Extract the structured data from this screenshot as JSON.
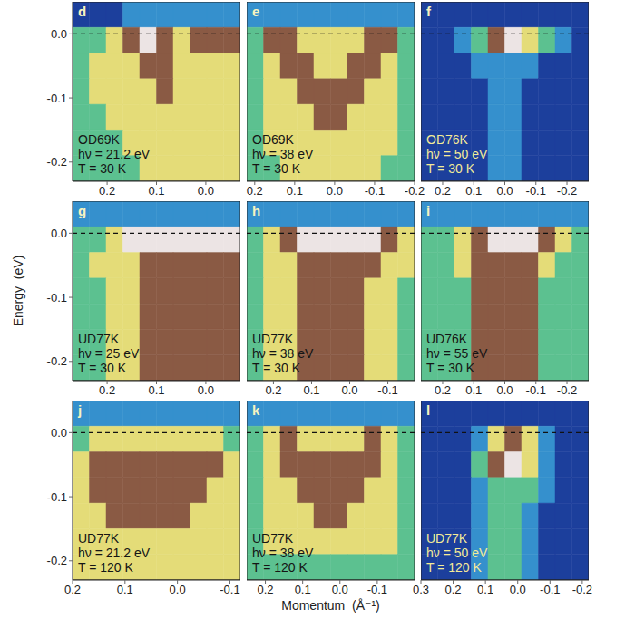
{
  "xlabel": "Momentum  (Å⁻¹)",
  "ylabel": "Energy  (eV)",
  "chart_data": [
    {
      "type": "heatmap",
      "title": "d",
      "annotations": [
        "OD69K",
        "hν = 21.2 eV",
        "T = 30 K"
      ],
      "xlim": [
        0.27,
        -0.07
      ],
      "xticks": [
        0.2,
        0.1,
        {
          "value": 0,
          "label": "0.0"
        }
      ],
      "ylim": [
        -0.23,
        0.05
      ],
      "yticks": [
        {
          "value": 0,
          "label": "0.0"
        },
        -0.1,
        -0.2
      ],
      "fermi_level": 0,
      "cells": [
        [
          0,
          0,
          0,
          1,
          1,
          1,
          1,
          1,
          1,
          1
        ],
        [
          2,
          2,
          3,
          4,
          5,
          4,
          3,
          4,
          4,
          4
        ],
        [
          2,
          3,
          3,
          3,
          4,
          4,
          3,
          3,
          3,
          3
        ],
        [
          2,
          3,
          3,
          3,
          3,
          4,
          3,
          3,
          3,
          3
        ],
        [
          2,
          2,
          3,
          3,
          3,
          3,
          3,
          3,
          3,
          3
        ],
        [
          2,
          2,
          2,
          3,
          3,
          3,
          3,
          3,
          3,
          3
        ],
        [
          2,
          2,
          2,
          2,
          3,
          3,
          3,
          3,
          3,
          3
        ]
      ]
    },
    {
      "type": "heatmap",
      "title": "e",
      "annotations": [
        "OD69K",
        "hν = 38 eV",
        "T = 30 K"
      ],
      "xlim": [
        0.22,
        -0.2
      ],
      "xticks": [
        0.2,
        0.1,
        {
          "value": 0,
          "label": "0.0"
        },
        -0.1,
        -0.2
      ],
      "ylim": [
        -0.23,
        0.05
      ],
      "yticks": [
        {
          "value": 0,
          "label": "0.0"
        },
        -0.1,
        -0.2
      ],
      "fermi_level": 0,
      "tick_labels": "x",
      "cells": [
        [
          1,
          1,
          1,
          1,
          1,
          1,
          1,
          1,
          1,
          1
        ],
        [
          2,
          4,
          4,
          3,
          3,
          3,
          3,
          4,
          4,
          2
        ],
        [
          2,
          3,
          4,
          4,
          3,
          3,
          4,
          4,
          3,
          2
        ],
        [
          2,
          3,
          3,
          4,
          4,
          4,
          4,
          3,
          3,
          2
        ],
        [
          2,
          3,
          3,
          3,
          4,
          4,
          3,
          3,
          3,
          2
        ],
        [
          2,
          3,
          3,
          3,
          3,
          3,
          3,
          3,
          3,
          2
        ],
        [
          2,
          2,
          3,
          3,
          3,
          3,
          3,
          3,
          2,
          2
        ]
      ]
    },
    {
      "type": "heatmap",
      "title": "f",
      "annotations": [
        "OD76K",
        "hν = 50 eV",
        "T = 30 K"
      ],
      "xlim": [
        0.27,
        -0.27
      ],
      "xticks": [
        0.2,
        0.1,
        {
          "value": 0,
          "label": "0.0"
        },
        -0.1,
        -0.2
      ],
      "ylim": [
        -0.23,
        0.05
      ],
      "yticks": [
        {
          "value": 0,
          "label": "0.0"
        },
        -0.1,
        -0.2
      ],
      "fermi_level": 0,
      "tick_labels": "x",
      "cells": [
        [
          0,
          0,
          0,
          0,
          0,
          0,
          0,
          0,
          0,
          0
        ],
        [
          0,
          0,
          1,
          2,
          4,
          5,
          3,
          2,
          1,
          0
        ],
        [
          0,
          0,
          0,
          1,
          1,
          1,
          1,
          0,
          0,
          0
        ],
        [
          0,
          0,
          0,
          0,
          1,
          1,
          0,
          0,
          0,
          0
        ],
        [
          0,
          0,
          0,
          0,
          1,
          1,
          0,
          0,
          0,
          0
        ],
        [
          0,
          0,
          0,
          0,
          1,
          1,
          0,
          0,
          0,
          0
        ],
        [
          0,
          0,
          0,
          0,
          1,
          1,
          0,
          0,
          0,
          0
        ]
      ]
    },
    {
      "type": "heatmap",
      "title": "g",
      "annotations": [
        "UD77K",
        "hν = 25 eV",
        "T = 30 K"
      ],
      "xlim": [
        0.27,
        -0.07
      ],
      "xticks": [
        0.2,
        0.1,
        {
          "value": 0,
          "label": "0.0"
        }
      ],
      "ylim": [
        -0.23,
        0.05
      ],
      "yticks": [
        {
          "value": 0,
          "label": "0.0"
        },
        -0.1,
        -0.2
      ],
      "fermi_level": 0,
      "cells": [
        [
          1,
          1,
          1,
          1,
          1,
          1,
          1,
          1,
          1,
          1
        ],
        [
          2,
          2,
          3,
          5,
          5,
          5,
          5,
          5,
          5,
          5
        ],
        [
          2,
          3,
          3,
          3,
          4,
          4,
          4,
          4,
          4,
          4
        ],
        [
          2,
          2,
          3,
          3,
          4,
          4,
          4,
          4,
          4,
          4
        ],
        [
          2,
          2,
          3,
          3,
          4,
          4,
          4,
          4,
          4,
          4
        ],
        [
          2,
          2,
          3,
          3,
          4,
          4,
          4,
          4,
          4,
          4
        ],
        [
          2,
          2,
          3,
          3,
          4,
          4,
          4,
          4,
          4,
          4
        ]
      ]
    },
    {
      "type": "heatmap",
      "title": "h",
      "annotations": [
        "UD77K",
        "hν = 38 eV",
        "T = 30 K"
      ],
      "xlim": [
        0.27,
        -0.17
      ],
      "xticks": [
        0.2,
        0.1,
        {
          "value": 0,
          "label": "0.0"
        },
        -0.1
      ],
      "ylim": [
        -0.23,
        0.05
      ],
      "yticks": [
        {
          "value": 0,
          "label": "0.0"
        },
        -0.1,
        -0.2
      ],
      "fermi_level": 0,
      "tick_labels": "x",
      "cells": [
        [
          1,
          1,
          1,
          1,
          1,
          1,
          1,
          1,
          1,
          1
        ],
        [
          2,
          3,
          4,
          5,
          5,
          5,
          5,
          5,
          4,
          3
        ],
        [
          2,
          3,
          3,
          4,
          4,
          4,
          4,
          4,
          3,
          3
        ],
        [
          2,
          3,
          3,
          4,
          4,
          4,
          4,
          3,
          3,
          2
        ],
        [
          2,
          3,
          3,
          4,
          4,
          4,
          4,
          3,
          3,
          2
        ],
        [
          2,
          3,
          3,
          4,
          4,
          4,
          4,
          3,
          3,
          2
        ],
        [
          2,
          3,
          3,
          4,
          4,
          4,
          4,
          3,
          3,
          2
        ]
      ]
    },
    {
      "type": "heatmap",
      "title": "i",
      "annotations": [
        "UD76K",
        "hν = 55 eV",
        "T = 30 K"
      ],
      "xlim": [
        0.27,
        -0.27
      ],
      "xticks": [
        0.2,
        0.1,
        {
          "value": 0,
          "label": "0.0"
        },
        -0.1,
        -0.2
      ],
      "ylim": [
        -0.23,
        0.05
      ],
      "yticks": [
        {
          "value": 0,
          "label": "0.0"
        },
        -0.1,
        -0.2
      ],
      "fermi_level": 0,
      "tick_labels": "x",
      "cells": [
        [
          1,
          1,
          1,
          1,
          1,
          1,
          1,
          1,
          1,
          1
        ],
        [
          2,
          2,
          3,
          4,
          5,
          5,
          5,
          4,
          3,
          2
        ],
        [
          2,
          2,
          3,
          4,
          4,
          4,
          4,
          3,
          2,
          2
        ],
        [
          2,
          2,
          2,
          4,
          4,
          4,
          4,
          2,
          2,
          2
        ],
        [
          2,
          2,
          2,
          4,
          4,
          4,
          4,
          2,
          2,
          2
        ],
        [
          2,
          2,
          2,
          4,
          4,
          4,
          4,
          2,
          2,
          2
        ],
        [
          2,
          2,
          2,
          4,
          4,
          4,
          4,
          2,
          2,
          2
        ]
      ]
    },
    {
      "type": "heatmap",
      "title": "j",
      "annotations": [
        "UD77K",
        "hν = 21.2 eV",
        "T = 120 K"
      ],
      "xlim": [
        0.2,
        -0.12
      ],
      "xticks": [
        0.2,
        0.1,
        {
          "value": 0,
          "label": "0.0"
        },
        -0.1
      ],
      "ylim": [
        -0.23,
        0.05
      ],
      "yticks": [
        {
          "value": 0,
          "label": "0.0"
        },
        -0.1,
        -0.2
      ],
      "fermi_level": 0,
      "cells": [
        [
          1,
          1,
          1,
          1,
          1,
          1,
          1,
          1,
          1,
          1
        ],
        [
          2,
          3,
          3,
          3,
          3,
          3,
          3,
          3,
          3,
          2
        ],
        [
          3,
          4,
          4,
          4,
          4,
          4,
          4,
          4,
          4,
          3
        ],
        [
          3,
          4,
          4,
          4,
          4,
          4,
          4,
          4,
          3,
          3
        ],
        [
          3,
          3,
          4,
          4,
          4,
          4,
          4,
          3,
          3,
          3
        ],
        [
          3,
          3,
          3,
          3,
          3,
          3,
          3,
          3,
          3,
          3
        ],
        [
          3,
          3,
          3,
          3,
          3,
          3,
          3,
          3,
          3,
          3
        ]
      ]
    },
    {
      "type": "heatmap",
      "title": "k",
      "annotations": [
        "UD77K",
        "hν = 38 eV",
        "T = 120 K"
      ],
      "xlim": [
        0.25,
        -0.2
      ],
      "xticks": [
        0.2,
        0.1,
        {
          "value": 0,
          "label": "0.0"
        },
        -0.1
      ],
      "ylim": [
        -0.23,
        0.05
      ],
      "yticks": [
        {
          "value": 0,
          "label": "0.0"
        },
        -0.1,
        -0.2
      ],
      "fermi_level": 0,
      "tick_labels": "x",
      "cells": [
        [
          1,
          1,
          1,
          1,
          1,
          1,
          1,
          1,
          1,
          1
        ],
        [
          2,
          3,
          4,
          3,
          3,
          3,
          3,
          4,
          3,
          2
        ],
        [
          2,
          3,
          4,
          4,
          4,
          4,
          4,
          4,
          3,
          2
        ],
        [
          2,
          3,
          3,
          4,
          4,
          4,
          4,
          3,
          3,
          2
        ],
        [
          2,
          3,
          3,
          3,
          4,
          4,
          3,
          3,
          3,
          2
        ],
        [
          2,
          3,
          3,
          3,
          3,
          3,
          3,
          3,
          3,
          2
        ],
        [
          2,
          2,
          2,
          2,
          2,
          2,
          2,
          2,
          2,
          2
        ]
      ]
    },
    {
      "type": "heatmap",
      "title": "l",
      "annotations": [
        "UD77K",
        "hν = 50 eV",
        "T = 120 K"
      ],
      "xlim": [
        0.3,
        -0.22
      ],
      "xticks": [
        0.3,
        0.2,
        0.1,
        {
          "value": 0,
          "label": "0.0"
        },
        -0.1,
        -0.2
      ],
      "ylim": [
        -0.23,
        0.05
      ],
      "yticks": [
        {
          "value": 0,
          "label": "0.0"
        },
        -0.1,
        -0.2
      ],
      "fermi_level": 0,
      "tick_labels": "x",
      "cells": [
        [
          0,
          0,
          0,
          0,
          0,
          0,
          0,
          0,
          0,
          0
        ],
        [
          0,
          0,
          0,
          1,
          3,
          4,
          3,
          1,
          0,
          0
        ],
        [
          0,
          0,
          0,
          2,
          4,
          5,
          3,
          1,
          0,
          0
        ],
        [
          0,
          0,
          0,
          1,
          2,
          2,
          2,
          1,
          0,
          0
        ],
        [
          0,
          0,
          0,
          1,
          2,
          2,
          1,
          0,
          0,
          0
        ],
        [
          0,
          0,
          0,
          1,
          2,
          2,
          1,
          0,
          0,
          0
        ],
        [
          0,
          0,
          0,
          1,
          2,
          2,
          1,
          0,
          0,
          0
        ]
      ]
    }
  ]
}
